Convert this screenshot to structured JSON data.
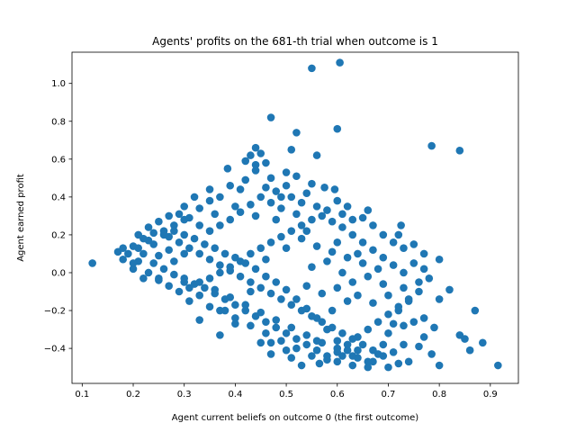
{
  "chart_data": {
    "type": "scatter",
    "title": "Agents' profits on the 681-th trial when outcome is 1",
    "xlabel": "Agent current beliefs on outcome 0 (the first outcome)",
    "ylabel": "Agent earned profit",
    "xlim": [
      0.08,
      0.955
    ],
    "ylim": [
      -0.585,
      1.165
    ],
    "xticks": [
      "0.1",
      "0.2",
      "0.3",
      "0.4",
      "0.5",
      "0.6",
      "0.7",
      "0.8",
      "0.9"
    ],
    "yticks": [
      "−0.4",
      "−0.2",
      "0.0",
      "0.2",
      "0.4",
      "0.6",
      "0.8",
      "1.0"
    ],
    "grid": false,
    "marker_color": "#1f77b4",
    "series": [
      {
        "points": [
          [
            0.12,
            0.05
          ],
          [
            0.17,
            0.11
          ],
          [
            0.55,
            1.08
          ],
          [
            0.605,
            1.11
          ],
          [
            0.47,
            0.82
          ],
          [
            0.6,
            0.76
          ],
          [
            0.785,
            0.67
          ],
          [
            0.84,
            0.645
          ],
          [
            0.52,
            0.74
          ],
          [
            0.56,
            0.62
          ],
          [
            0.51,
            0.65
          ],
          [
            0.44,
            0.66
          ],
          [
            0.45,
            0.63
          ],
          [
            0.46,
            0.58
          ],
          [
            0.43,
            0.62
          ],
          [
            0.385,
            0.55
          ],
          [
            0.44,
            0.54
          ],
          [
            0.47,
            0.5
          ],
          [
            0.5,
            0.53
          ],
          [
            0.52,
            0.51
          ],
          [
            0.5,
            0.46
          ],
          [
            0.55,
            0.47
          ],
          [
            0.54,
            0.42
          ],
          [
            0.575,
            0.45
          ],
          [
            0.595,
            0.44
          ],
          [
            0.6,
            0.38
          ],
          [
            0.62,
            0.35
          ],
          [
            0.65,
            0.29
          ],
          [
            0.66,
            0.33
          ],
          [
            0.725,
            0.25
          ],
          [
            0.72,
            0.2
          ],
          [
            0.75,
            0.15
          ],
          [
            0.77,
            0.1
          ],
          [
            0.8,
            0.07
          ],
          [
            0.82,
            -0.09
          ],
          [
            0.87,
            -0.2
          ],
          [
            0.84,
            -0.33
          ],
          [
            0.85,
            -0.35
          ],
          [
            0.86,
            -0.41
          ],
          [
            0.885,
            -0.37
          ],
          [
            0.915,
            -0.49
          ],
          [
            0.8,
            -0.49
          ],
          [
            0.785,
            -0.43
          ],
          [
            0.76,
            -0.39
          ],
          [
            0.74,
            -0.47
          ],
          [
            0.72,
            -0.48
          ],
          [
            0.7,
            -0.5
          ],
          [
            0.66,
            -0.5
          ],
          [
            0.63,
            -0.49
          ],
          [
            0.6,
            -0.47
          ],
          [
            0.565,
            -0.48
          ],
          [
            0.53,
            -0.49
          ],
          [
            0.51,
            -0.45
          ],
          [
            0.47,
            -0.43
          ],
          [
            0.45,
            -0.37
          ],
          [
            0.37,
            -0.33
          ],
          [
            0.33,
            -0.25
          ],
          [
            0.3,
            -0.05
          ],
          [
            0.25,
            -0.03
          ],
          [
            0.2,
            0.02
          ],
          [
            0.21,
            0.13
          ],
          [
            0.23,
            0.17
          ],
          [
            0.26,
            0.22
          ],
          [
            0.28,
            0.25
          ],
          [
            0.3,
            0.28
          ],
          [
            0.33,
            0.34
          ],
          [
            0.35,
            0.38
          ],
          [
            0.37,
            0.4
          ],
          [
            0.39,
            0.46
          ],
          [
            0.41,
            0.44
          ],
          [
            0.42,
            0.49
          ],
          [
            0.46,
            0.45
          ],
          [
            0.48,
            0.43
          ],
          [
            0.51,
            0.4
          ],
          [
            0.53,
            0.37
          ],
          [
            0.56,
            0.35
          ],
          [
            0.58,
            0.33
          ],
          [
            0.61,
            0.31
          ],
          [
            0.63,
            0.28
          ],
          [
            0.67,
            0.25
          ],
          [
            0.69,
            0.2
          ],
          [
            0.71,
            0.16
          ],
          [
            0.73,
            0.13
          ],
          [
            0.75,
            0.05
          ],
          [
            0.77,
            0.02
          ],
          [
            0.78,
            -0.03
          ],
          [
            0.76,
            -0.1
          ],
          [
            0.74,
            -0.15
          ],
          [
            0.72,
            -0.2
          ],
          [
            0.71,
            -0.27
          ],
          [
            0.7,
            -0.32
          ],
          [
            0.69,
            -0.38
          ],
          [
            0.68,
            -0.43
          ],
          [
            0.67,
            -0.47
          ],
          [
            0.64,
            -0.45
          ],
          [
            0.62,
            -0.41
          ],
          [
            0.6,
            -0.36
          ],
          [
            0.58,
            -0.3
          ],
          [
            0.56,
            -0.24
          ],
          [
            0.54,
            -0.19
          ],
          [
            0.52,
            -0.14
          ],
          [
            0.5,
            -0.09
          ],
          [
            0.48,
            -0.05
          ],
          [
            0.46,
            -0.02
          ],
          [
            0.44,
            0.02
          ],
          [
            0.42,
            0.05
          ],
          [
            0.4,
            0.08
          ],
          [
            0.38,
            0.1
          ],
          [
            0.36,
            0.13
          ],
          [
            0.34,
            0.15
          ],
          [
            0.32,
            0.18
          ],
          [
            0.3,
            0.2
          ],
          [
            0.28,
            0.22
          ],
          [
            0.26,
            0.2
          ],
          [
            0.24,
            0.15
          ],
          [
            0.22,
            0.1
          ],
          [
            0.24,
            0.05
          ],
          [
            0.26,
            0.02
          ],
          [
            0.28,
            -0.01
          ],
          [
            0.3,
            -0.03
          ],
          [
            0.32,
            -0.06
          ],
          [
            0.34,
            -0.08
          ],
          [
            0.36,
            -0.11
          ],
          [
            0.38,
            -0.14
          ],
          [
            0.4,
            -0.17
          ],
          [
            0.42,
            -0.2
          ],
          [
            0.44,
            -0.23
          ],
          [
            0.46,
            -0.26
          ],
          [
            0.48,
            -0.29
          ],
          [
            0.5,
            -0.32
          ],
          [
            0.52,
            -0.35
          ],
          [
            0.54,
            -0.38
          ],
          [
            0.56,
            -0.41
          ],
          [
            0.58,
            -0.44
          ],
          [
            0.6,
            -0.42
          ],
          [
            0.62,
            -0.38
          ],
          [
            0.64,
            -0.34
          ],
          [
            0.66,
            -0.3
          ],
          [
            0.68,
            -0.26
          ],
          [
            0.7,
            -0.22
          ],
          [
            0.72,
            -0.18
          ],
          [
            0.74,
            -0.14
          ],
          [
            0.76,
            -0.05
          ],
          [
            0.73,
            0.0
          ],
          [
            0.71,
            0.04
          ],
          [
            0.69,
            0.08
          ],
          [
            0.67,
            0.12
          ],
          [
            0.65,
            0.16
          ],
          [
            0.63,
            0.2
          ],
          [
            0.61,
            0.24
          ],
          [
            0.59,
            0.27
          ],
          [
            0.57,
            0.3
          ],
          [
            0.55,
            0.28
          ],
          [
            0.53,
            0.25
          ],
          [
            0.51,
            0.22
          ],
          [
            0.49,
            0.19
          ],
          [
            0.47,
            0.16
          ],
          [
            0.45,
            0.13
          ],
          [
            0.43,
            0.1
          ],
          [
            0.41,
            0.06
          ],
          [
            0.39,
            0.03
          ],
          [
            0.37,
            0.0
          ],
          [
            0.35,
            -0.03
          ],
          [
            0.33,
            -0.05
          ],
          [
            0.31,
            -0.08
          ],
          [
            0.29,
            -0.1
          ],
          [
            0.27,
            -0.07
          ],
          [
            0.25,
            -0.04
          ],
          [
            0.23,
            0.0
          ],
          [
            0.21,
            0.06
          ],
          [
            0.19,
            0.1
          ],
          [
            0.2,
            0.14
          ],
          [
            0.22,
            0.18
          ],
          [
            0.24,
            0.21
          ],
          [
            0.27,
            0.19
          ],
          [
            0.29,
            0.16
          ],
          [
            0.31,
            0.13
          ],
          [
            0.33,
            0.1
          ],
          [
            0.35,
            0.07
          ],
          [
            0.37,
            0.04
          ],
          [
            0.39,
            0.01
          ],
          [
            0.41,
            -0.02
          ],
          [
            0.43,
            -0.05
          ],
          [
            0.45,
            -0.08
          ],
          [
            0.47,
            -0.11
          ],
          [
            0.49,
            -0.14
          ],
          [
            0.51,
            -0.17
          ],
          [
            0.53,
            -0.2
          ],
          [
            0.55,
            -0.23
          ],
          [
            0.57,
            -0.26
          ],
          [
            0.59,
            -0.29
          ],
          [
            0.61,
            -0.32
          ],
          [
            0.63,
            -0.35
          ],
          [
            0.65,
            -0.38
          ],
          [
            0.67,
            -0.41
          ],
          [
            0.69,
            -0.44
          ],
          [
            0.66,
            -0.47
          ],
          [
            0.63,
            -0.44
          ],
          [
            0.6,
            -0.4
          ],
          [
            0.57,
            -0.37
          ],
          [
            0.54,
            -0.33
          ],
          [
            0.51,
            -0.29
          ],
          [
            0.48,
            -0.25
          ],
          [
            0.45,
            -0.21
          ],
          [
            0.42,
            -0.17
          ],
          [
            0.39,
            -0.13
          ],
          [
            0.36,
            -0.09
          ],
          [
            0.33,
            -0.12
          ],
          [
            0.31,
            -0.15
          ],
          [
            0.35,
            -0.18
          ],
          [
            0.37,
            -0.2
          ],
          [
            0.4,
            -0.24
          ],
          [
            0.43,
            -0.28
          ],
          [
            0.46,
            -0.32
          ],
          [
            0.49,
            -0.36
          ],
          [
            0.52,
            -0.4
          ],
          [
            0.55,
            -0.44
          ],
          [
            0.58,
            -0.46
          ],
          [
            0.61,
            -0.44
          ],
          [
            0.64,
            -0.41
          ],
          [
            0.52,
            0.31
          ],
          [
            0.49,
            0.34
          ],
          [
            0.47,
            0.37
          ],
          [
            0.45,
            0.4
          ],
          [
            0.43,
            0.36
          ],
          [
            0.41,
            0.32
          ],
          [
            0.39,
            0.28
          ],
          [
            0.37,
            0.25
          ],
          [
            0.35,
            0.22
          ],
          [
            0.33,
            0.25
          ],
          [
            0.31,
            0.29
          ],
          [
            0.29,
            0.31
          ],
          [
            0.36,
            0.31
          ],
          [
            0.4,
            0.35
          ],
          [
            0.44,
            0.3
          ],
          [
            0.48,
            0.28
          ],
          [
            0.53,
            0.18
          ],
          [
            0.56,
            0.14
          ],
          [
            0.59,
            0.11
          ],
          [
            0.62,
            0.08
          ],
          [
            0.65,
            0.05
          ],
          [
            0.68,
            0.02
          ],
          [
            0.66,
            -0.02
          ],
          [
            0.63,
            -0.05
          ],
          [
            0.6,
            -0.08
          ],
          [
            0.57,
            -0.11
          ],
          [
            0.54,
            -0.07
          ],
          [
            0.55,
            0.03
          ],
          [
            0.58,
            0.06
          ],
          [
            0.61,
            0.0
          ],
          [
            0.64,
            -0.12
          ],
          [
            0.67,
            -0.16
          ],
          [
            0.7,
            -0.12
          ],
          [
            0.73,
            -0.08
          ],
          [
            0.75,
            -0.26
          ],
          [
            0.77,
            -0.34
          ],
          [
            0.79,
            -0.29
          ],
          [
            0.73,
            -0.38
          ],
          [
            0.71,
            -0.42
          ],
          [
            0.35,
            0.44
          ],
          [
            0.32,
            0.4
          ],
          [
            0.3,
            0.35
          ],
          [
            0.27,
            0.3
          ],
          [
            0.25,
            0.27
          ],
          [
            0.23,
            0.24
          ],
          [
            0.21,
            0.2
          ],
          [
            0.18,
            0.13
          ],
          [
            0.2,
            0.05
          ],
          [
            0.18,
            0.07
          ],
          [
            0.22,
            -0.03
          ],
          [
            0.25,
            0.09
          ],
          [
            0.28,
            0.06
          ],
          [
            0.3,
            0.1
          ],
          [
            0.27,
            0.12
          ],
          [
            0.42,
            0.59
          ],
          [
            0.44,
            0.57
          ],
          [
            0.49,
            0.4
          ],
          [
            0.54,
            0.22
          ],
          [
            0.5,
            0.13
          ],
          [
            0.46,
            0.07
          ],
          [
            0.43,
            -0.1
          ],
          [
            0.4,
            -0.27
          ],
          [
            0.38,
            -0.2
          ],
          [
            0.47,
            -0.37
          ],
          [
            0.5,
            -0.41
          ],
          [
            0.56,
            -0.36
          ],
          [
            0.59,
            -0.2
          ],
          [
            0.62,
            -0.15
          ],
          [
            0.6,
            0.16
          ],
          [
            0.64,
            0.1
          ],
          [
            0.69,
            -0.06
          ],
          [
            0.73,
            -0.28
          ],
          [
            0.77,
            -0.24
          ],
          [
            0.8,
            -0.14
          ]
        ]
      }
    ]
  }
}
